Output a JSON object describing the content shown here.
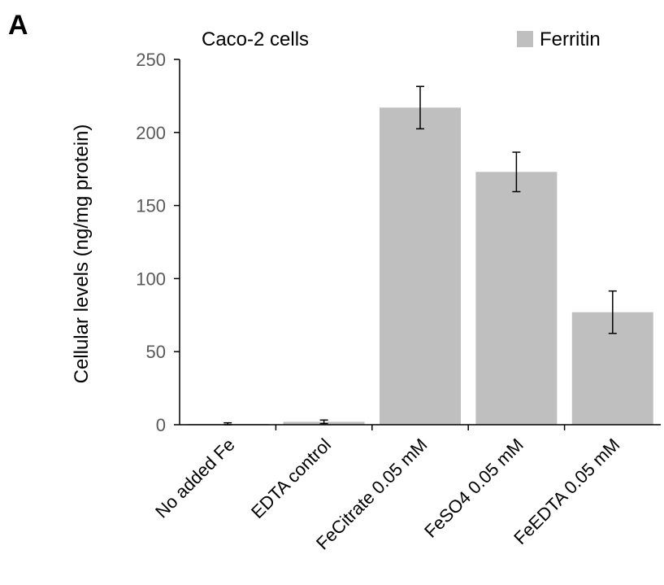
{
  "panel_label": "A",
  "chart_data": {
    "type": "bar",
    "subtitle": "Caco-2 cells",
    "ylabel": "Cellular levels (ng/mg protein)",
    "xlabel": "",
    "categories": [
      "No added Fe",
      "EDTA control",
      "FeCitrate 0.05 mM",
      "FeSO4 0.05 mM",
      "FeEDTA 0.05 mM"
    ],
    "series": [
      {
        "name": "Ferritin",
        "values": [
          0.5,
          2,
          217,
          173,
          77
        ],
        "errors": [
          0.8,
          1.2,
          14.5,
          13.5,
          14.5
        ],
        "color": "#bfbfbf"
      }
    ],
    "ylim": [
      0,
      250
    ],
    "yticks": [
      0,
      50,
      100,
      150,
      200,
      250
    ],
    "legend": "top-right",
    "grid": false
  }
}
